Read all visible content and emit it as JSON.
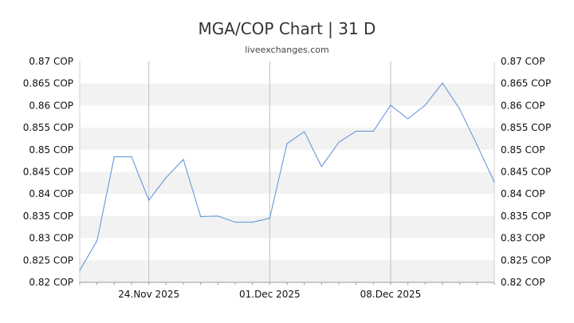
{
  "chart_data": {
    "type": "line",
    "title": "MGA/COP Chart | 31 D",
    "subtitle": "liveexchanges.com",
    "y_tick_labels": [
      "0.87 COP",
      "0.865 COP",
      "0.86 COP",
      "0.855 COP",
      "0.85 COP",
      "0.845 COP",
      "0.84 COP",
      "0.835 COP",
      "0.83 COP",
      "0.825 COP",
      "0.82 COP"
    ],
    "y_ticks": [
      0.87,
      0.865,
      0.86,
      0.855,
      0.85,
      0.845,
      0.84,
      0.835,
      0.83,
      0.825,
      0.82
    ],
    "ylim": [
      0.82,
      0.87
    ],
    "x_tick_labels": [
      {
        "label": "24.Nov 2025",
        "index": 4
      },
      {
        "label": "01.Dec 2025",
        "index": 11
      },
      {
        "label": "08.Dec 2025",
        "index": 18
      }
    ],
    "grid": true,
    "series": [
      {
        "values": [
          0.8227,
          0.8294,
          0.8484,
          0.8484,
          0.8386,
          0.8437,
          0.8478,
          0.8349,
          0.835,
          0.8336,
          0.8336,
          0.8345,
          0.8514,
          0.8541,
          0.8462,
          0.8517,
          0.8542,
          0.8542,
          0.8601,
          0.857,
          0.8601,
          0.8651,
          0.8592,
          0.8511,
          0.8427
        ],
        "color": "#5b8fd9"
      }
    ]
  }
}
